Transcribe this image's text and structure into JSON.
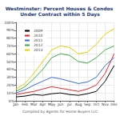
{
  "chart_data": {
    "type": "line",
    "title": "Westminster: Percent Houses & Condos Under Contract within 5 Days",
    "footer": "Compiled by Agents for Home Buyers LLC",
    "categories": [
      "Jan",
      "Feb",
      "Mar",
      "Apr",
      "May",
      "Jun",
      "Jul",
      "Aug",
      "Sep",
      "Oct",
      "Nov",
      "Dec"
    ],
    "series": [
      {
        "name": "2009",
        "color": "#000000",
        "values": [
          5,
          6,
          8,
          7,
          9,
          10,
          8,
          7,
          9,
          12,
          25,
          45
        ]
      },
      {
        "name": "2010",
        "color": "#e8262a",
        "values": [
          8,
          10,
          12,
          15,
          18,
          16,
          14,
          12,
          15,
          20,
          35,
          60
        ]
      },
      {
        "name": "2011",
        "color": "#3a6fd8",
        "values": [
          10,
          14,
          20,
          25,
          30,
          28,
          25,
          22,
          24,
          30,
          45,
          55
        ]
      },
      {
        "name": "2012",
        "color": "#3cb043",
        "values": [
          12,
          18,
          28,
          40,
          55,
          60,
          58,
          50,
          48,
          55,
          65,
          70
        ]
      },
      {
        "name": "2013",
        "color": "#e6d200",
        "values": [
          15,
          22,
          35,
          50,
          65,
          70,
          68,
          60,
          62,
          72,
          85,
          92
        ]
      }
    ],
    "ylim": [
      0,
      100
    ],
    "yticks": [
      {
        "value": 0,
        "label": "0%"
      },
      {
        "value": 10,
        "label": "10%"
      },
      {
        "value": 20,
        "label": "20%"
      },
      {
        "value": 30,
        "label": "30%"
      },
      {
        "value": 40,
        "label": "40%"
      },
      {
        "value": 50,
        "label": "50%"
      },
      {
        "value": 60,
        "label": "60%"
      },
      {
        "value": 70,
        "label": "70%"
      },
      {
        "value": 80,
        "label": "80%"
      },
      {
        "value": 90,
        "label": "90%"
      },
      {
        "value": 100,
        "label": "100%"
      }
    ],
    "grid": true,
    "legend": "top-left"
  }
}
